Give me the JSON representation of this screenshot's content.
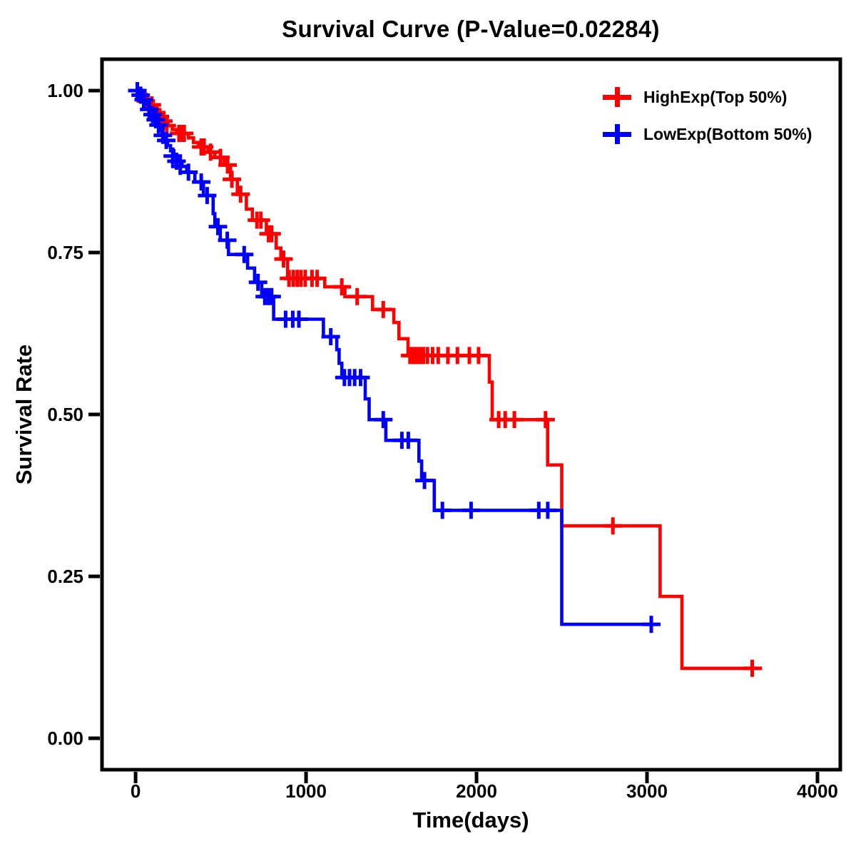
{
  "chart": {
    "title": "Survival Curve (P-Value=0.02284)",
    "xlabel": "Time(days)",
    "ylabel": "Survival Rate"
  },
  "chart_data": {
    "type": "line",
    "subtype": "kaplan-meier-step",
    "title": "Survival Curve (P-Value=0.02284)",
    "p_value": "0.02284",
    "xlabel": "Time(days)",
    "ylabel": "Survival Rate",
    "grid": false,
    "legend_position": "top-right-inside",
    "xlim": [
      -197,
      4134
    ],
    "ylim": [
      -0.0485,
      1.0485
    ],
    "x_ticks": [
      0,
      1000,
      2000,
      3000,
      4000
    ],
    "x_tick_labels": [
      "0",
      "1000",
      "2000",
      "3000",
      "4000"
    ],
    "y_ticks": [
      0,
      0.25,
      0.5,
      0.75,
      1
    ],
    "y_tick_labels": [
      "0.00",
      "0.25",
      "0.50",
      "0.75",
      "1.00"
    ],
    "axis_color": "#000000",
    "series": [
      {
        "id": "highexp",
        "name": "HighExp(Top 50%)",
        "color": "#ff0000",
        "end_time": 3675,
        "steps": [
          [
            0,
            1.0
          ],
          [
            25,
            0.995
          ],
          [
            50,
            0.99
          ],
          [
            70,
            0.984
          ],
          [
            90,
            0.978
          ],
          [
            110,
            0.972
          ],
          [
            130,
            0.966
          ],
          [
            150,
            0.96
          ],
          [
            170,
            0.953
          ],
          [
            190,
            0.946
          ],
          [
            215,
            0.94
          ],
          [
            240,
            0.934
          ],
          [
            310,
            0.927
          ],
          [
            340,
            0.92
          ],
          [
            368,
            0.913
          ],
          [
            425,
            0.905
          ],
          [
            465,
            0.897
          ],
          [
            520,
            0.885
          ],
          [
            557,
            0.863
          ],
          [
            597,
            0.84
          ],
          [
            650,
            0.817
          ],
          [
            685,
            0.8
          ],
          [
            767,
            0.779
          ],
          [
            825,
            0.757
          ],
          [
            852,
            0.74
          ],
          [
            892,
            0.71
          ],
          [
            1110,
            0.697
          ],
          [
            1228,
            0.682
          ],
          [
            1390,
            0.662
          ],
          [
            1515,
            0.642
          ],
          [
            1545,
            0.617
          ],
          [
            1598,
            0.591
          ],
          [
            2075,
            0.55
          ],
          [
            2092,
            0.492
          ],
          [
            2417,
            0.422
          ],
          [
            2500,
            0.328
          ],
          [
            3077,
            0.219
          ],
          [
            3205,
            0.108
          ]
        ],
        "censors": [
          [
            60,
            0.984
          ],
          [
            95,
            0.978
          ],
          [
            122,
            0.966
          ],
          [
            142,
            0.96
          ],
          [
            163,
            0.953
          ],
          [
            183,
            0.946
          ],
          [
            255,
            0.934
          ],
          [
            270,
            0.934
          ],
          [
            285,
            0.934
          ],
          [
            385,
            0.913
          ],
          [
            402,
            0.913
          ],
          [
            440,
            0.905
          ],
          [
            498,
            0.897
          ],
          [
            540,
            0.885
          ],
          [
            565,
            0.863
          ],
          [
            616,
            0.84
          ],
          [
            712,
            0.8
          ],
          [
            735,
            0.8
          ],
          [
            780,
            0.779
          ],
          [
            798,
            0.779
          ],
          [
            868,
            0.74
          ],
          [
            900,
            0.71
          ],
          [
            925,
            0.71
          ],
          [
            948,
            0.71
          ],
          [
            970,
            0.71
          ],
          [
            995,
            0.71
          ],
          [
            1035,
            0.71
          ],
          [
            1065,
            0.71
          ],
          [
            1210,
            0.697
          ],
          [
            1300,
            0.682
          ],
          [
            1453,
            0.662
          ],
          [
            1610,
            0.591
          ],
          [
            1628,
            0.591
          ],
          [
            1648,
            0.591
          ],
          [
            1668,
            0.591
          ],
          [
            1688,
            0.591
          ],
          [
            1712,
            0.591
          ],
          [
            1742,
            0.591
          ],
          [
            1775,
            0.591
          ],
          [
            1832,
            0.591
          ],
          [
            1888,
            0.591
          ],
          [
            1958,
            0.591
          ],
          [
            2012,
            0.591
          ],
          [
            2130,
            0.492
          ],
          [
            2168,
            0.492
          ],
          [
            2222,
            0.492
          ],
          [
            2405,
            0.492
          ],
          [
            2800,
            0.328
          ],
          [
            3617,
            0.108
          ]
        ]
      },
      {
        "id": "lowexp",
        "name": "LowExp(Bottom 50%)",
        "color": "#0000ff",
        "end_time": 3025,
        "steps": [
          [
            0,
            1.0
          ],
          [
            20,
            0.993
          ],
          [
            40,
            0.986
          ],
          [
            58,
            0.979
          ],
          [
            75,
            0.971
          ],
          [
            92,
            0.963
          ],
          [
            108,
            0.955
          ],
          [
            124,
            0.947
          ],
          [
            140,
            0.939
          ],
          [
            156,
            0.931
          ],
          [
            172,
            0.923
          ],
          [
            188,
            0.915
          ],
          [
            205,
            0.907
          ],
          [
            225,
            0.899
          ],
          [
            248,
            0.891
          ],
          [
            272,
            0.883
          ],
          [
            300,
            0.874
          ],
          [
            348,
            0.859
          ],
          [
            398,
            0.838
          ],
          [
            455,
            0.81
          ],
          [
            465,
            0.79
          ],
          [
            497,
            0.769
          ],
          [
            545,
            0.747
          ],
          [
            657,
            0.726
          ],
          [
            698,
            0.704
          ],
          [
            740,
            0.682
          ],
          [
            810,
            0.647
          ],
          [
            1102,
            0.62
          ],
          [
            1180,
            0.6
          ],
          [
            1194,
            0.579
          ],
          [
            1210,
            0.557
          ],
          [
            1347,
            0.524
          ],
          [
            1370,
            0.492
          ],
          [
            1468,
            0.46
          ],
          [
            1662,
            0.428
          ],
          [
            1678,
            0.398
          ],
          [
            1752,
            0.352
          ],
          [
            2500,
            0.176
          ]
        ],
        "censors": [
          [
            10,
            1.0
          ],
          [
            30,
            0.993
          ],
          [
            48,
            0.986
          ],
          [
            80,
            0.971
          ],
          [
            100,
            0.963
          ],
          [
            118,
            0.955
          ],
          [
            135,
            0.947
          ],
          [
            160,
            0.931
          ],
          [
            180,
            0.923
          ],
          [
            218,
            0.899
          ],
          [
            240,
            0.891
          ],
          [
            262,
            0.883
          ],
          [
            310,
            0.874
          ],
          [
            385,
            0.859
          ],
          [
            420,
            0.838
          ],
          [
            483,
            0.79
          ],
          [
            538,
            0.769
          ],
          [
            637,
            0.747
          ],
          [
            718,
            0.704
          ],
          [
            758,
            0.682
          ],
          [
            778,
            0.682
          ],
          [
            798,
            0.682
          ],
          [
            880,
            0.647
          ],
          [
            922,
            0.647
          ],
          [
            958,
            0.647
          ],
          [
            1145,
            0.62
          ],
          [
            1225,
            0.557
          ],
          [
            1255,
            0.557
          ],
          [
            1285,
            0.557
          ],
          [
            1320,
            0.557
          ],
          [
            1453,
            0.492
          ],
          [
            1562,
            0.46
          ],
          [
            1600,
            0.46
          ],
          [
            1695,
            0.398
          ],
          [
            1800,
            0.352
          ],
          [
            1968,
            0.352
          ],
          [
            2365,
            0.352
          ],
          [
            2418,
            0.352
          ],
          [
            3025,
            0.176
          ]
        ]
      }
    ]
  }
}
